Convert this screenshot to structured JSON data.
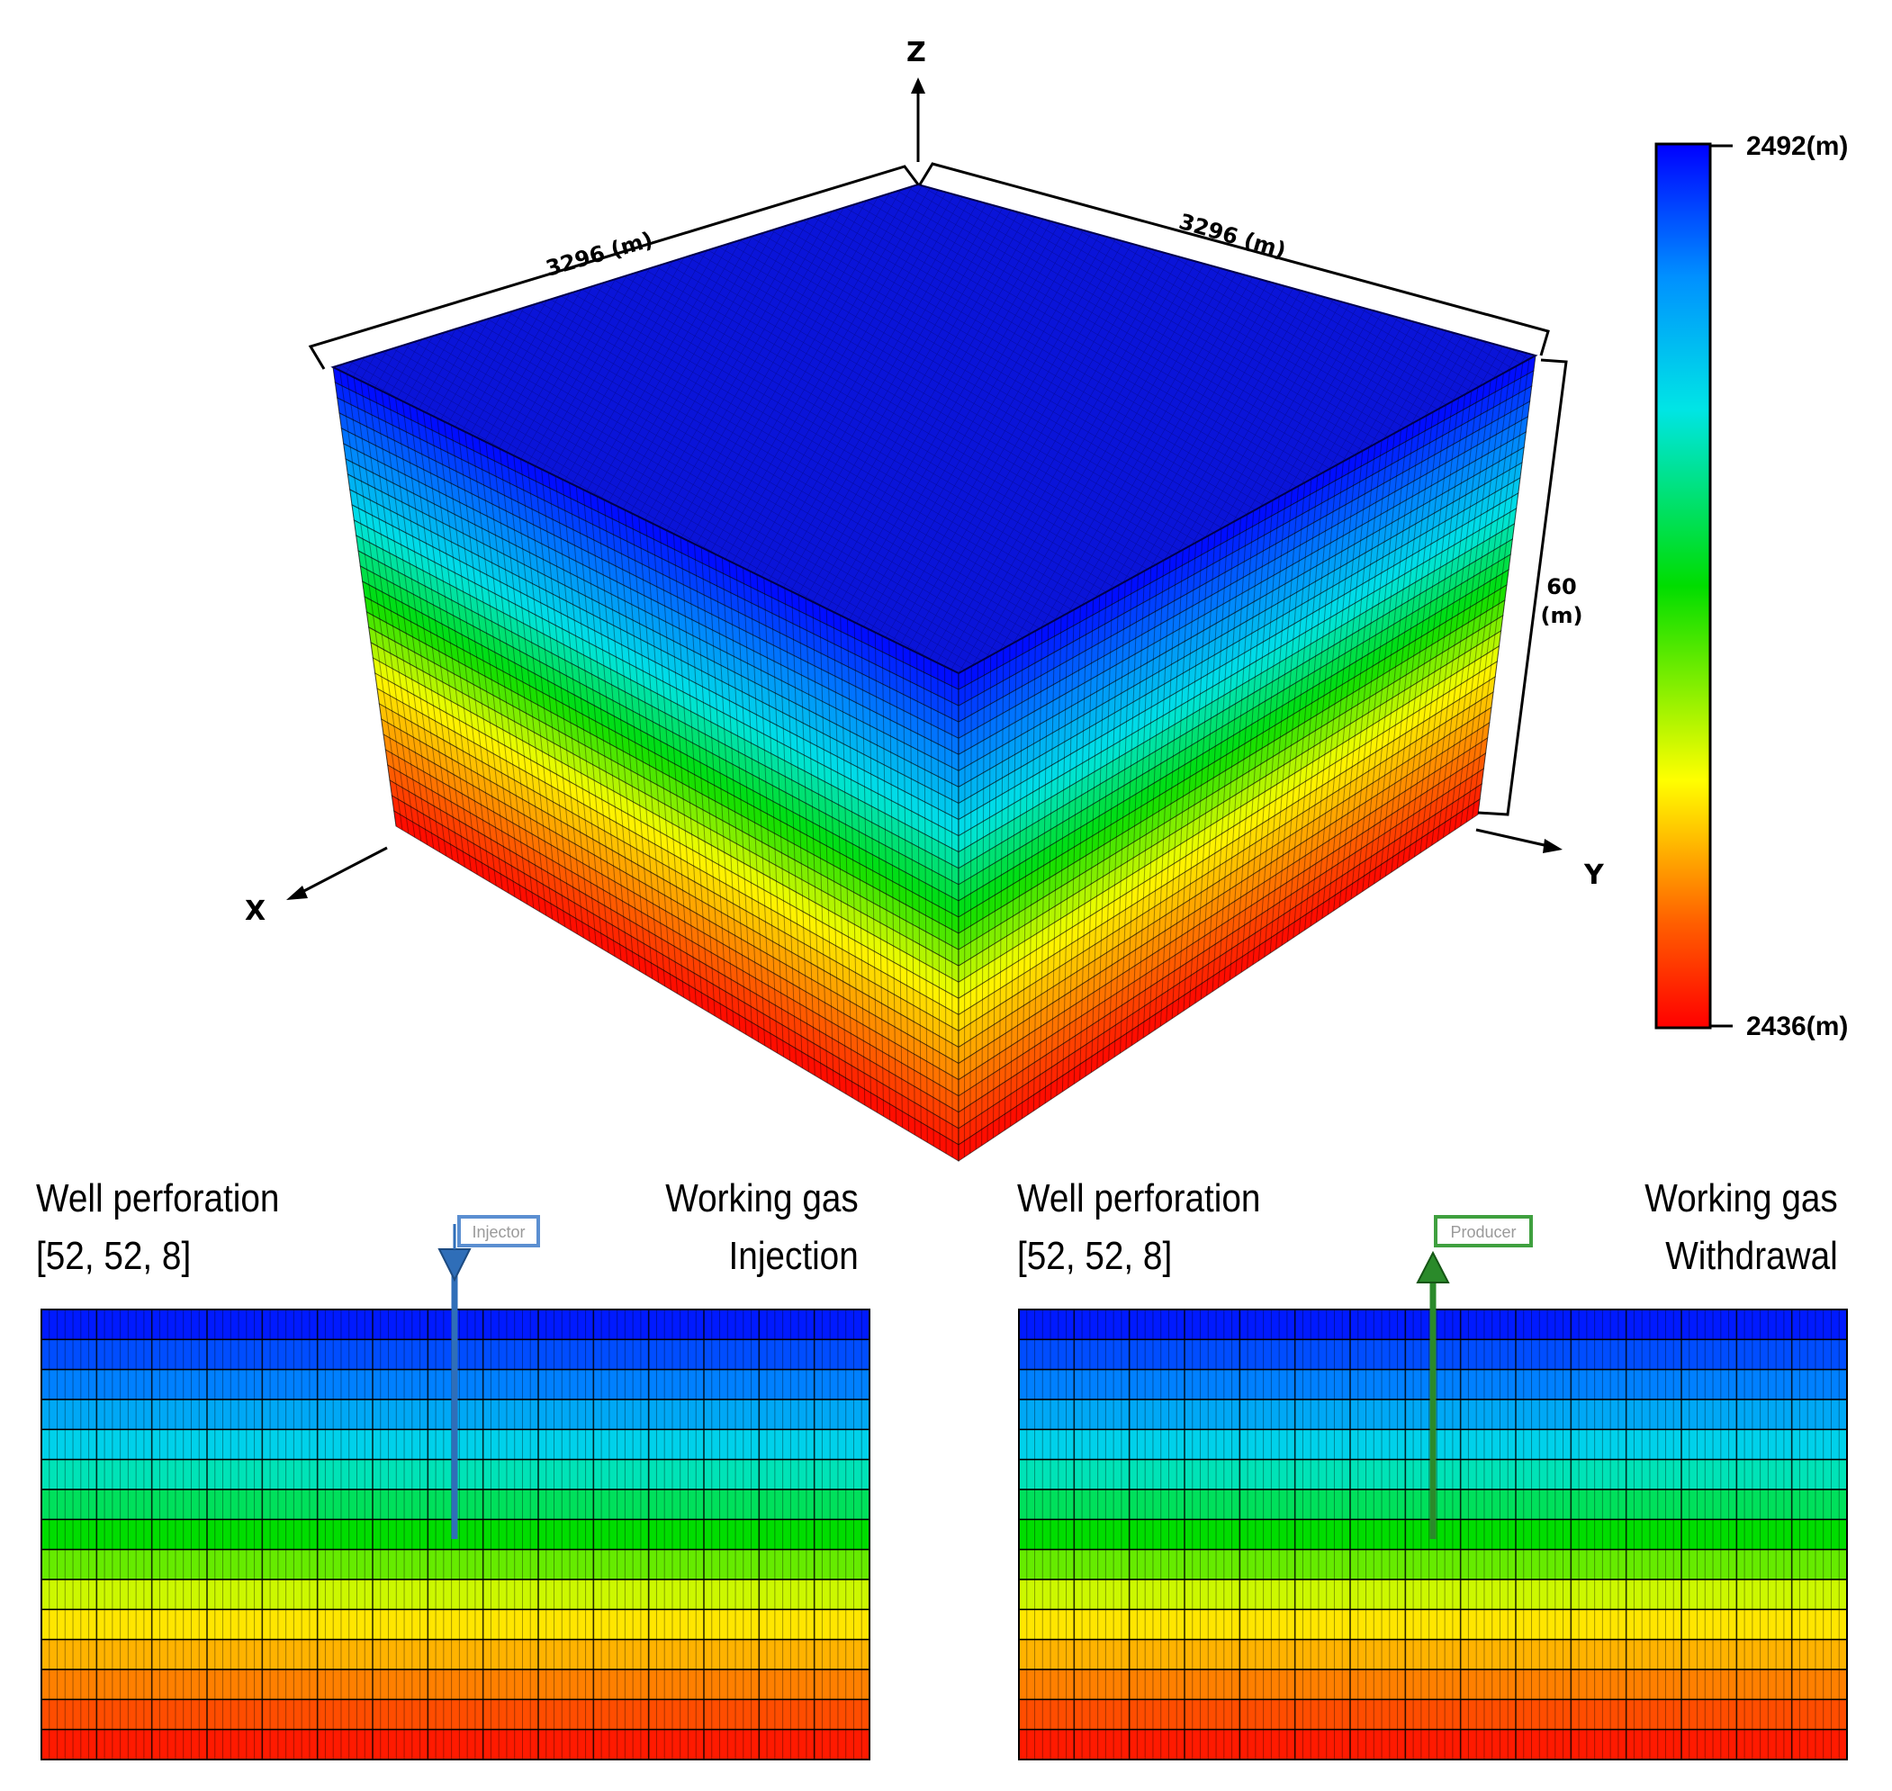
{
  "axes": {
    "x": "X",
    "y": "Y",
    "z": "Z"
  },
  "dimensions": {
    "x_extent": "3296 (m)",
    "y_extent": "3296 (m)",
    "thickness_value": "60",
    "thickness_unit": "(m)"
  },
  "colorbar": {
    "max_label": "2492(m)",
    "min_label": "2436(m)",
    "stops": [
      "#ff0000",
      "#ff8000",
      "#ffff00",
      "#00dd00",
      "#00e5e5",
      "#0080ff",
      "#0000ff"
    ]
  },
  "panels": [
    {
      "title_line1": "Well perforation",
      "title_line2": "[52, 52, 8]",
      "right_line1": "Working gas",
      "right_line2": "Injection",
      "well_label": "Injector",
      "well_color": "#2f6eb8"
    },
    {
      "title_line1": "Well perforation",
      "title_line2": "[52, 52, 8]",
      "right_line1": "Working gas",
      "right_line2": "Withdrawal",
      "well_label": "Producer",
      "well_color": "#2a8a2a"
    }
  ]
}
